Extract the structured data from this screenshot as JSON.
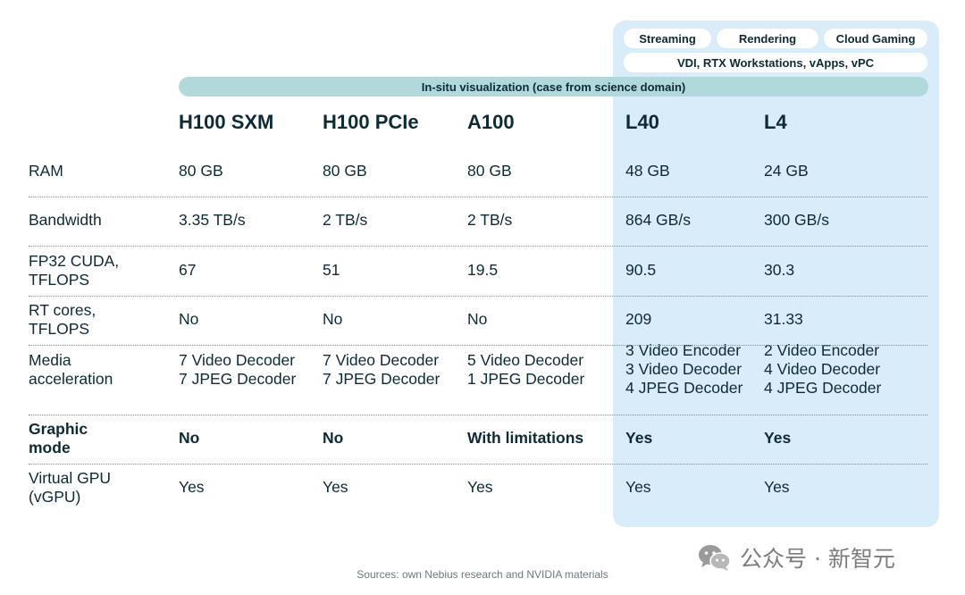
{
  "tags": {
    "streaming": "Streaming",
    "rendering": "Rendering",
    "cloud_gaming": "Cloud Gaming",
    "vdi": "VDI, RTX Workstations, vApps, vPC",
    "insitu": "In-situ visualization (case from science domain)"
  },
  "columns": [
    "H100 SXM",
    "H100 PCIe",
    "A100",
    "L40",
    "L4"
  ],
  "rows": [
    {
      "label": [
        "RAM"
      ],
      "bold": false,
      "cells": [
        [
          "80 GB"
        ],
        [
          "80 GB"
        ],
        [
          "80 GB"
        ],
        [
          "48 GB"
        ],
        [
          "24 GB"
        ]
      ]
    },
    {
      "label": [
        "Bandwidth"
      ],
      "bold": false,
      "cells": [
        [
          "3.35 TB/s"
        ],
        [
          "2 TB/s"
        ],
        [
          "2 TB/s"
        ],
        [
          "864 GB/s"
        ],
        [
          "300 GB/s"
        ]
      ]
    },
    {
      "label": [
        "FP32 CUDA,",
        "TFLOPS"
      ],
      "bold": false,
      "cells": [
        [
          "67"
        ],
        [
          "51"
        ],
        [
          "19.5"
        ],
        [
          "90.5"
        ],
        [
          "30.3"
        ]
      ]
    },
    {
      "label": [
        "RT cores,",
        "TFLOPS"
      ],
      "bold": false,
      "cells": [
        [
          "No"
        ],
        [
          "No"
        ],
        [
          "No"
        ],
        [
          "209"
        ],
        [
          "31.33"
        ]
      ]
    },
    {
      "label": [
        "Media",
        "acceleration"
      ],
      "bold": false,
      "cells": [
        [
          "7 Video Decoder",
          "7 JPEG Decoder"
        ],
        [
          "7 Video Decoder",
          "7 JPEG Decoder"
        ],
        [
          "5 Video Decoder",
          "1 JPEG Decoder"
        ],
        [
          "3 Video Encoder",
          "3 Video Decoder",
          "4 JPEG Decoder"
        ],
        [
          "2 Video Encoder",
          "4 Video Decoder",
          "4 JPEG Decoder"
        ]
      ]
    },
    {
      "label": [
        "Graphic",
        "mode"
      ],
      "bold": true,
      "cells": [
        [
          "No"
        ],
        [
          "No"
        ],
        [
          "With limitations"
        ],
        [
          "Yes"
        ],
        [
          "Yes"
        ]
      ]
    },
    {
      "label": [
        "Virtual GPU",
        "(vGPU)"
      ],
      "bold": false,
      "cells": [
        [
          "Yes"
        ],
        [
          "Yes"
        ],
        [
          "Yes"
        ],
        [
          "Yes"
        ],
        [
          "Yes"
        ]
      ]
    }
  ],
  "source_note": "Sources: own Nebius research and NVIDIA materials",
  "watermark": {
    "text": "公众号 · 新智元",
    "icon": "wechat-icon"
  },
  "colors": {
    "panel": "#d8ecf9",
    "band": "#b1d9dc",
    "text": "#0d2a35"
  }
}
